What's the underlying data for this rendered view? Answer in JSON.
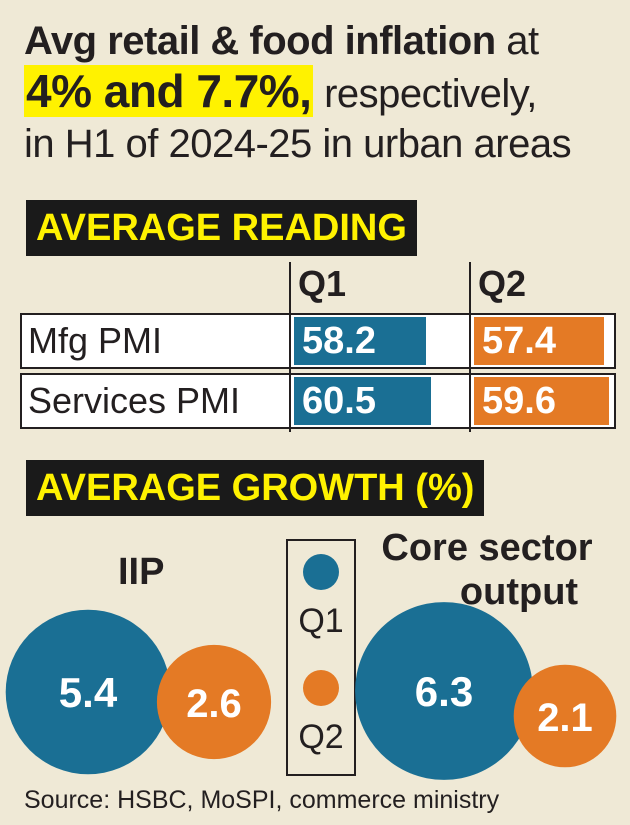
{
  "headline": {
    "line1_bold": "Avg retail & food inflation",
    "line1_rest": " at",
    "line2_highlight": "4% and 7.7%,",
    "line2_rest": " respectively,",
    "line3": "in H1 of 2024-25 in urban areas"
  },
  "colors": {
    "q1": "#1a6f94",
    "q2": "#e47a25",
    "highlight": "#fff200",
    "bar_bg": "#1a1a1a"
  },
  "chart_data": [
    {
      "type": "table",
      "title": "AVERAGE READING",
      "columns": [
        "Q1",
        "Q2"
      ],
      "rows": [
        {
          "label": "Mfg PMI",
          "values": [
            58.2,
            57.4
          ]
        },
        {
          "label": "Services PMI",
          "values": [
            60.5,
            59.6
          ]
        }
      ]
    },
    {
      "type": "scatter",
      "title": "AVERAGE GROWTH (%)",
      "legend": [
        "Q1",
        "Q2"
      ],
      "groups": [
        {
          "label": "IIP",
          "values": [
            5.4,
            2.6
          ]
        },
        {
          "label_lines": [
            "Core sector",
            "output"
          ],
          "values": [
            6.3,
            2.1
          ]
        }
      ]
    }
  ],
  "source": "Source: HSBC, MoSPI, commerce ministry"
}
